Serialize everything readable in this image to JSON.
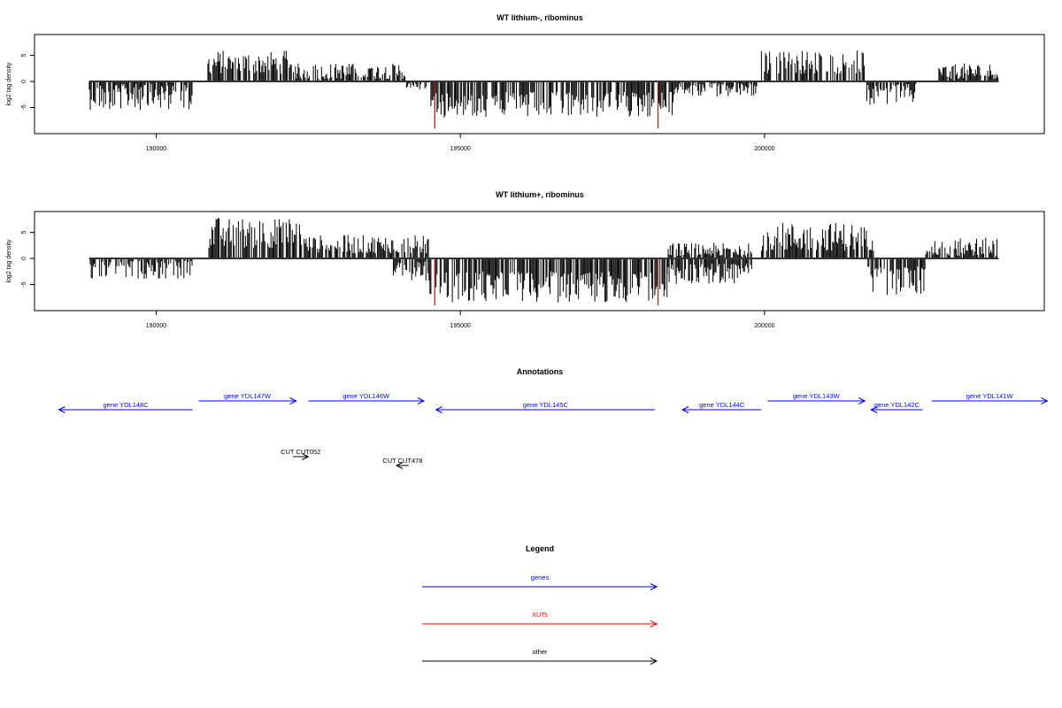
{
  "chart_data": [
    {
      "type": "bar",
      "title": "WT lithium-, ribominus",
      "ylabel": "log2 tag density",
      "x_ticks": [
        190000,
        195000,
        200000
      ],
      "y_ticks": [
        -5,
        0,
        5
      ],
      "xlim": [
        188000,
        204600
      ],
      "ylim": [
        -10,
        9
      ],
      "segments": [
        {
          "from": 188900,
          "to": 190600,
          "sign": -1,
          "min": 0.5,
          "max": 5.5
        },
        {
          "from": 190850,
          "to": 192300,
          "sign": 1,
          "min": 1.5,
          "max": 6
        },
        {
          "from": 192300,
          "to": 194100,
          "sign": 1,
          "min": 0.5,
          "max": 3.5
        },
        {
          "from": 194100,
          "to": 194450,
          "sign": -1,
          "min": 0.3,
          "max": 1.5
        },
        {
          "from": 194500,
          "to": 198500,
          "sign": -1,
          "min": 2,
          "max": 7
        },
        {
          "from": 198500,
          "to": 199900,
          "sign": -1,
          "min": 0.3,
          "max": 3
        },
        {
          "from": 199950,
          "to": 201650,
          "sign": 1,
          "min": 1.5,
          "max": 6
        },
        {
          "from": 201650,
          "to": 202500,
          "sign": -1,
          "min": 0.5,
          "max": 4.5
        },
        {
          "from": 202850,
          "to": 203850,
          "sign": 1,
          "min": 0.5,
          "max": 3.5
        }
      ],
      "red_lines": [
        {
          "x": 194580,
          "y": -9
        },
        {
          "x": 198250,
          "y": -9
        }
      ],
      "bar_color": "#000000",
      "highlight_color": "#ff0000"
    },
    {
      "type": "bar",
      "title": "WT lithium+, ribominus",
      "ylabel": "log2 tag density",
      "x_ticks": [
        190000,
        195000,
        200000
      ],
      "y_ticks": [
        -5,
        0,
        5
      ],
      "xlim": [
        188000,
        204600
      ],
      "ylim": [
        -10,
        9
      ],
      "segments": [
        {
          "from": 188900,
          "to": 190600,
          "sign": -1,
          "min": 0.5,
          "max": 4
        },
        {
          "from": 190850,
          "to": 192400,
          "sign": 1,
          "min": 2,
          "max": 8
        },
        {
          "from": 192400,
          "to": 194500,
          "sign": 1,
          "min": 1,
          "max": 4.5
        },
        {
          "from": 193900,
          "to": 194500,
          "sign": -1,
          "min": 0.5,
          "max": 4.5
        },
        {
          "from": 194500,
          "to": 198400,
          "sign": -1,
          "min": 2.5,
          "max": 8.5
        },
        {
          "from": 198400,
          "to": 199800,
          "sign": -1,
          "min": 1,
          "max": 5
        },
        {
          "from": 198400,
          "to": 199800,
          "sign": 1,
          "min": 0.5,
          "max": 3
        },
        {
          "from": 199950,
          "to": 201800,
          "sign": 1,
          "min": 1.5,
          "max": 7
        },
        {
          "from": 201700,
          "to": 202650,
          "sign": -1,
          "min": 1.5,
          "max": 7
        },
        {
          "from": 202650,
          "to": 203850,
          "sign": 1,
          "min": 0.5,
          "max": 4
        }
      ],
      "red_lines": [
        {
          "x": 194580,
          "y": -9
        },
        {
          "x": 198250,
          "y": -9
        }
      ],
      "bar_color": "#000000",
      "highlight_color": "#ff0000"
    }
  ],
  "annotations": {
    "title": "Annotations",
    "genes": [
      {
        "label": "gene YDL148C",
        "from": 188400,
        "to": 190600,
        "strand": "-",
        "row": 1
      },
      {
        "label": "gene YDL147W",
        "from": 190700,
        "to": 192300,
        "strand": "+",
        "row": 0
      },
      {
        "label": "gene YDL146W",
        "from": 192500,
        "to": 194400,
        "strand": "+",
        "row": 0
      },
      {
        "label": "gene YDL145C",
        "from": 194600,
        "to": 198200,
        "strand": "-",
        "row": 1
      },
      {
        "label": "gene YDL144C",
        "from": 198650,
        "to": 199950,
        "strand": "-",
        "row": 1
      },
      {
        "label": "gene YDL143W",
        "from": 200050,
        "to": 201650,
        "strand": "+",
        "row": 0
      },
      {
        "label": "gene YDL142C",
        "from": 201750,
        "to": 202600,
        "strand": "-",
        "row": 1
      },
      {
        "label": "gene YDL141W",
        "from": 202750,
        "to": 204650,
        "strand": "+",
        "row": 0
      }
    ],
    "other": [
      {
        "label": "CUT CUT052",
        "from": 192250,
        "to": 192500,
        "strand": "+",
        "row": 0
      },
      {
        "label": "CUT CUT478",
        "from": 193950,
        "to": 194150,
        "strand": "-",
        "row": 1
      }
    ],
    "gene_color": "#0000ff",
    "other_color": "#000000"
  },
  "legend": {
    "title": "Legend",
    "items": [
      {
        "label": "genes",
        "color": "#0000ff"
      },
      {
        "label": "XUTs",
        "color": "#ff0000"
      },
      {
        "label": "other",
        "color": "#000000"
      }
    ]
  }
}
